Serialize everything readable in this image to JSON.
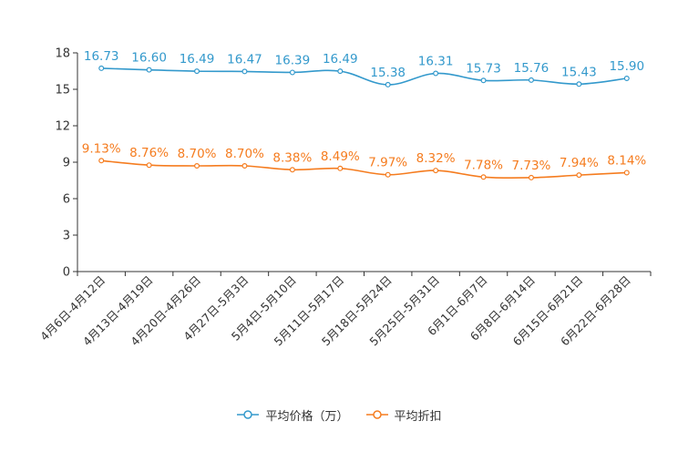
{
  "chart_data": {
    "type": "line",
    "categories": [
      "4月6日-4月12日",
      "4月13日-4月19日",
      "4月20日-4月26日",
      "4月27日-5月3日",
      "5月4日-5月10日",
      "5月11日-5月17日",
      "5月18日-5月24日",
      "5月25日-5月31日",
      "6月1日-6月7日",
      "6月8日-6月14日",
      "6月15日-6月21日",
      "6月22日-6月28日"
    ],
    "ylim": [
      0,
      18
    ],
    "yticks": [
      0,
      3,
      6,
      9,
      12,
      15,
      18
    ],
    "legend_position": "bottom-center",
    "series": [
      {
        "name": "平均价格（万）",
        "color": "#3399cc",
        "values": [
          16.73,
          16.6,
          16.49,
          16.47,
          16.39,
          16.49,
          15.38,
          16.31,
          15.73,
          15.76,
          15.43,
          15.9
        ],
        "labels": [
          "16.73",
          "16.60",
          "16.49",
          "16.47",
          "16.39",
          "16.49",
          "15.38",
          "16.31",
          "15.73",
          "15.76",
          "15.43",
          "15.90"
        ]
      },
      {
        "name": "平均折扣",
        "color": "#f57c1f",
        "values": [
          9.13,
          8.76,
          8.7,
          8.7,
          8.38,
          8.49,
          7.97,
          8.32,
          7.78,
          7.73,
          7.94,
          8.14
        ],
        "labels": [
          "9.13%",
          "8.76%",
          "8.70%",
          "8.70%",
          "8.38%",
          "8.49%",
          "7.97%",
          "8.32%",
          "7.78%",
          "7.73%",
          "7.94%",
          "8.14%"
        ]
      }
    ]
  }
}
